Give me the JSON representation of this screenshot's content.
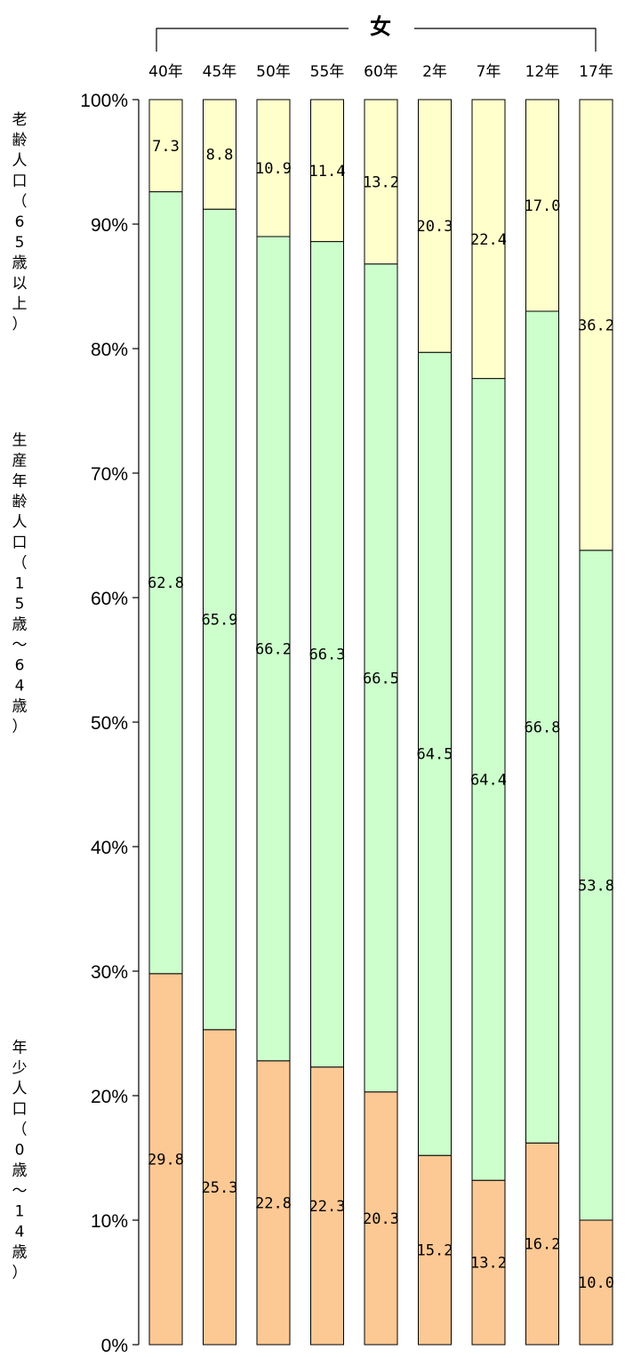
{
  "chart_data": {
    "type": "bar",
    "stacked": true,
    "normalized_percent": true,
    "title": "女",
    "categories": [
      "40年",
      "45年",
      "50年",
      "55年",
      "60年",
      "2年",
      "7年",
      "12年",
      "17年"
    ],
    "series": [
      {
        "name": "年少人口（0歳～14歳）",
        "color": "#fcc894",
        "values": [
          29.8,
          25.3,
          22.8,
          22.3,
          20.3,
          15.2,
          13.2,
          16.2,
          10.0
        ],
        "labels": [
          "29.8",
          "25.3",
          "22.8",
          "22.3",
          "20.3",
          "15.2",
          "13.2",
          "16.2",
          "10.0"
        ]
      },
      {
        "name": "生産年齢人口（15歳～64歳）",
        "color": "#ccffcc",
        "values": [
          62.8,
          65.9,
          66.2,
          66.3,
          66.5,
          64.5,
          64.4,
          66.8,
          53.8
        ],
        "labels": [
          "62.8",
          "65.9",
          "66.2",
          "66.3",
          "66.5",
          "64.5",
          "64.4",
          "66.8",
          "53.8"
        ]
      },
      {
        "name": "老齢人口（65歳以上）",
        "color": "#ffffcc",
        "values": [
          7.3,
          8.8,
          10.9,
          11.4,
          13.2,
          20.3,
          22.4,
          17.0,
          36.2
        ],
        "labels": [
          "7.3",
          "8.8",
          "10.9",
          "11.4",
          "13.2",
          "20.3",
          "22.4",
          "17.0",
          "36.2"
        ]
      }
    ],
    "yticks": [
      "0%",
      "10%",
      "20%",
      "30%",
      "40%",
      "50%",
      "60%",
      "70%",
      "80%",
      "90%",
      "100%"
    ],
    "ylim": [
      0,
      100
    ],
    "grid": false,
    "legend": "left side, vertical labels beside each band"
  },
  "side_labels": [
    {
      "text": "老齢人口（65歳以上）",
      "series": 2
    },
    {
      "text": "生産年齢人口（15歳～64歳）",
      "series": 1
    },
    {
      "text": "年少人口（0歳～14歳）",
      "series": 0
    }
  ]
}
